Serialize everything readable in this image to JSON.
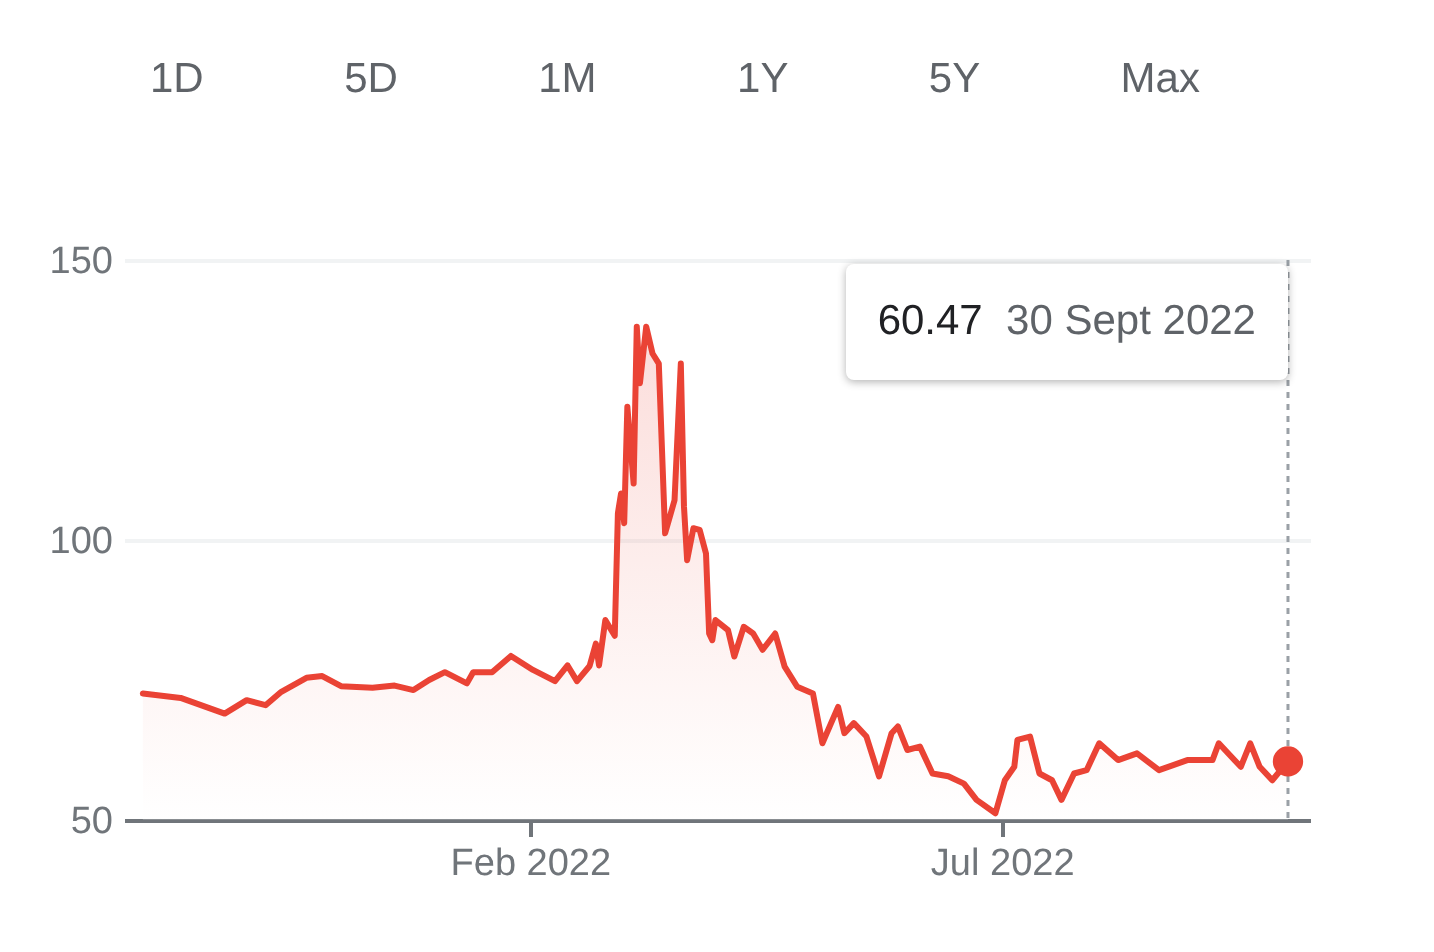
{
  "chart_data": {
    "type": "area",
    "x": [
      "2021-10-01",
      "2021-10-13",
      "2021-10-27",
      "2021-11-03",
      "2021-11-09",
      "2021-11-14",
      "2021-11-22",
      "2021-11-27",
      "2021-12-03",
      "2021-12-13",
      "2021-12-20",
      "2021-12-26",
      "2021-12-31",
      "2022-01-05",
      "2022-01-12",
      "2022-01-14",
      "2022-01-20",
      "2022-01-26",
      "2022-02-02",
      "2022-02-09",
      "2022-02-13",
      "2022-02-16",
      "2022-02-20",
      "2022-02-22",
      "2022-02-23",
      "2022-02-25",
      "2022-02-28",
      "2022-03-01",
      "2022-03-02",
      "2022-03-03",
      "2022-03-04",
      "2022-03-06",
      "2022-03-07",
      "2022-03-08",
      "2022-03-10",
      "2022-03-12",
      "2022-03-14",
      "2022-03-16",
      "2022-03-19",
      "2022-03-21",
      "2022-03-22",
      "2022-03-23",
      "2022-03-25",
      "2022-03-27",
      "2022-03-29",
      "2022-03-30",
      "2022-03-31",
      "2022-04-01",
      "2022-04-05",
      "2022-04-07",
      "2022-04-10",
      "2022-04-13",
      "2022-04-16",
      "2022-04-20",
      "2022-04-23",
      "2022-04-27",
      "2022-05-02",
      "2022-05-05",
      "2022-05-10",
      "2022-05-12",
      "2022-05-15",
      "2022-05-19",
      "2022-05-23",
      "2022-05-27",
      "2022-05-29",
      "2022-06-01",
      "2022-06-05",
      "2022-06-09",
      "2022-06-14",
      "2022-06-19",
      "2022-06-23",
      "2022-06-29",
      "2022-07-02",
      "2022-07-05",
      "2022-07-06",
      "2022-07-10",
      "2022-07-13",
      "2022-07-17",
      "2022-07-20",
      "2022-07-24",
      "2022-07-28",
      "2022-08-01",
      "2022-08-07",
      "2022-08-13",
      "2022-08-20",
      "2022-08-29",
      "2022-09-06",
      "2022-09-08",
      "2022-09-12",
      "2022-09-15",
      "2022-09-18",
      "2022-09-21",
      "2022-09-25",
      "2022-09-30"
    ],
    "series": [
      {
        "color": "#ea4335",
        "values": [
          72.6,
          71.8,
          69.0,
          71.4,
          70.5,
          72.9,
          75.4,
          75.7,
          73.9,
          73.6,
          74.0,
          73.2,
          75.0,
          76.4,
          74.4,
          76.4,
          76.4,
          79.3,
          76.8,
          74.8,
          77.6,
          74.8,
          77.5,
          81.5,
          77.6,
          85.7,
          82.9,
          104.8,
          108.3,
          103.0,
          123.8,
          110.1,
          138.1,
          128.0,
          138.1,
          133.3,
          131.5,
          101.2,
          107.1,
          131.5,
          106.0,
          96.4,
          102.1,
          101.8,
          97.6,
          83.3,
          82.1,
          85.7,
          83.9,
          79.2,
          84.5,
          83.3,
          80.4,
          83.3,
          77.4,
          73.8,
          72.6,
          63.7,
          70.2,
          65.5,
          67.3,
          64.9,
          57.8,
          65.5,
          66.7,
          62.5,
          63.1,
          58.3,
          57.8,
          56.5,
          53.6,
          51.2,
          57.1,
          59.5,
          64.3,
          64.9,
          58.3,
          57.1,
          53.6,
          58.3,
          58.9,
          63.7,
          60.7,
          61.9,
          58.9,
          60.7,
          60.7,
          63.7,
          61.3,
          59.5,
          63.7,
          59.5,
          57.1,
          60.47
        ]
      },
      {
        "type": "scatter",
        "color": "#ea4335",
        "x": [
          "2022-09-30"
        ],
        "values": [
          60.47
        ]
      }
    ],
    "xlim": [
      "2021-09-25",
      "2022-10-07"
    ],
    "xticks": [
      {
        "value": "2022-02-01",
        "label": "Feb 2022"
      },
      {
        "value": "2022-07-01",
        "label": "Jul 2022"
      }
    ],
    "ylim": [
      50,
      150
    ],
    "yticks": [
      50,
      100,
      150
    ],
    "grid": "y",
    "ref_lines": [
      {
        "axis": "x",
        "value": "2022-09-30",
        "color": "#9aa0a6",
        "line_style": "dotted"
      }
    ],
    "annotations": [
      "1D",
      "5D",
      "1M",
      "1Y",
      "5Y",
      "Max",
      "60.47 30 Sept 2022"
    ]
  }
}
